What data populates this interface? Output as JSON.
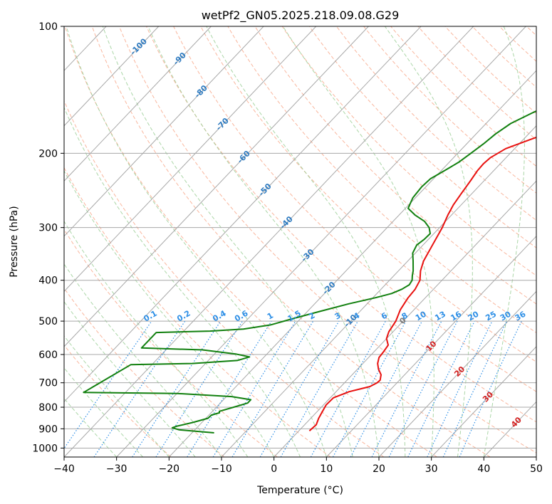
{
  "chart_data": {
    "type": "line",
    "subtype": "skew-t log-p diagram",
    "title": "wetPf2_GN05.2025.218.09.08.G29",
    "xlabel": "Temperature (°C)",
    "ylabel": "Pressure (hPa)",
    "xlim": [
      -40,
      50
    ],
    "ylim": [
      1050,
      100
    ],
    "yscale": "log",
    "x_ticks": [
      -40,
      -30,
      -20,
      -10,
      0,
      10,
      20,
      30,
      40,
      50
    ],
    "x_tick_labels": [
      "−40",
      "−30",
      "−20",
      "−10",
      "0",
      "10",
      "20",
      "30",
      "40",
      "50"
    ],
    "y_ticks": [
      100,
      200,
      300,
      400,
      500,
      600,
      700,
      800,
      900,
      1000
    ],
    "y_tick_labels": [
      "100",
      "200",
      "300",
      "400",
      "500",
      "600",
      "700",
      "800",
      "900",
      "1000"
    ],
    "grid": true,
    "skew_isotherm_labels": [
      "-100",
      "-90",
      "-80",
      "-70",
      "-60",
      "-50",
      "-40",
      "-30",
      "-20",
      "-10",
      "0",
      "10",
      "20",
      "30",
      "40"
    ],
    "mixing_ratio_labels": [
      "0.1",
      "0.2",
      "0.4",
      "0.6",
      "1",
      "1.5",
      "2",
      "3",
      "4",
      "6",
      "8",
      "10",
      "13",
      "16",
      "20",
      "25",
      "30",
      "36"
    ],
    "colors": {
      "temperature": "#e8110f",
      "dewpoint": "#12800f",
      "isotherm": "#a8a8a8",
      "dry_adiabat": "#f7a485",
      "moist_adiabat": "#9ccf98",
      "mixing_ratio": "#2e8fe6",
      "isotherm_label_cold": "#2f7bc0",
      "isotherm_label_warm": "#d32222",
      "isotherm_label_zero": "#7a7a7a"
    },
    "series": [
      {
        "role": "temperature",
        "points": [
          {
            "p": 910,
            "t": 2
          },
          {
            "p": 880,
            "t": 2.2
          },
          {
            "p": 850,
            "t": 1.5
          },
          {
            "p": 820,
            "t": 1
          },
          {
            "p": 790,
            "t": 0.5
          },
          {
            "p": 760,
            "t": 0.6
          },
          {
            "p": 735,
            "t": 2.5
          },
          {
            "p": 715,
            "t": 5.5
          },
          {
            "p": 700,
            "t": 6.2
          },
          {
            "p": 690,
            "t": 6.3
          },
          {
            "p": 670,
            "t": 5.5
          },
          {
            "p": 650,
            "t": 4
          },
          {
            "p": 630,
            "t": 2.8
          },
          {
            "p": 610,
            "t": 2
          },
          {
            "p": 590,
            "t": 1.8
          },
          {
            "p": 570,
            "t": 1.5
          },
          {
            "p": 550,
            "t": 0
          },
          {
            "p": 530,
            "t": -0.8
          },
          {
            "p": 500,
            "t": -1.4
          },
          {
            "p": 470,
            "t": -2.6
          },
          {
            "p": 440,
            "t": -3.3
          },
          {
            "p": 420,
            "t": -3.5
          },
          {
            "p": 400,
            "t": -4.2
          },
          {
            "p": 380,
            "t": -5.8
          },
          {
            "p": 360,
            "t": -7
          },
          {
            "p": 330,
            "t": -8.2
          },
          {
            "p": 300,
            "t": -9.5
          },
          {
            "p": 280,
            "t": -10.7
          },
          {
            "p": 265,
            "t": -11.5
          },
          {
            "p": 250,
            "t": -12
          },
          {
            "p": 232,
            "t": -12.6
          },
          {
            "p": 220,
            "t": -13.1
          },
          {
            "p": 212,
            "t": -13.2
          },
          {
            "p": 205,
            "t": -13
          },
          {
            "p": 195,
            "t": -11.7
          },
          {
            "p": 185,
            "t": -8.5
          },
          {
            "p": 175,
            "t": -5
          },
          {
            "p": 165,
            "t": -2.5
          },
          {
            "p": 157,
            "t": -1.7
          },
          {
            "p": 150,
            "t": -0.7
          },
          {
            "p": 143,
            "t": 0.5
          },
          {
            "p": 135,
            "t": 4
          },
          {
            "p": 125,
            "t": 9
          },
          {
            "p": 115,
            "t": 12.7
          },
          {
            "p": 100,
            "t": 18.3
          }
        ]
      },
      {
        "role": "dewpoint",
        "points": [
          {
            "p": 920,
            "t": -15.8
          },
          {
            "p": 905,
            "t": -23
          },
          {
            "p": 895,
            "t": -24.7
          },
          {
            "p": 888,
            "t": -24.2
          },
          {
            "p": 870,
            "t": -21.8
          },
          {
            "p": 850,
            "t": -19.6
          },
          {
            "p": 835,
            "t": -19.5
          },
          {
            "p": 825,
            "t": -18.4
          },
          {
            "p": 818,
            "t": -18.7
          },
          {
            "p": 800,
            "t": -16.7
          },
          {
            "p": 782,
            "t": -14.8
          },
          {
            "p": 768,
            "t": -14.8
          },
          {
            "p": 755,
            "t": -19
          },
          {
            "p": 742,
            "t": -30
          },
          {
            "p": 738,
            "t": -48
          },
          {
            "p": 634,
            "t": -44
          },
          {
            "p": 630,
            "t": -32.5
          },
          {
            "p": 620,
            "t": -24.5
          },
          {
            "p": 608,
            "t": -22.8
          },
          {
            "p": 598,
            "t": -26
          },
          {
            "p": 585,
            "t": -33
          },
          {
            "p": 579,
            "t": -45
          },
          {
            "p": 532,
            "t": -45
          },
          {
            "p": 528,
            "t": -35
          },
          {
            "p": 522,
            "t": -29
          },
          {
            "p": 510,
            "t": -24.5
          },
          {
            "p": 495,
            "t": -21.8
          },
          {
            "p": 475,
            "t": -17.8
          },
          {
            "p": 455,
            "t": -13.5
          },
          {
            "p": 440,
            "t": -9.5
          },
          {
            "p": 430,
            "t": -7.2
          },
          {
            "p": 420,
            "t": -6
          },
          {
            "p": 410,
            "t": -5.4
          },
          {
            "p": 400,
            "t": -5.7
          },
          {
            "p": 390,
            "t": -6.5
          },
          {
            "p": 380,
            "t": -7.2
          },
          {
            "p": 360,
            "t": -9
          },
          {
            "p": 345,
            "t": -10.5
          },
          {
            "p": 330,
            "t": -11.2
          },
          {
            "p": 320,
            "t": -10.8
          },
          {
            "p": 310,
            "t": -10.7
          },
          {
            "p": 300,
            "t": -12
          },
          {
            "p": 290,
            "t": -14
          },
          {
            "p": 280,
            "t": -17
          },
          {
            "p": 270,
            "t": -19.5
          },
          {
            "p": 255,
            "t": -20.5
          },
          {
            "p": 240,
            "t": -20.8
          },
          {
            "p": 230,
            "t": -20.6
          },
          {
            "p": 220,
            "t": -19.4
          },
          {
            "p": 210,
            "t": -18.2
          },
          {
            "p": 200,
            "t": -17.5
          },
          {
            "p": 190,
            "t": -16.8
          },
          {
            "p": 180,
            "t": -16.3
          },
          {
            "p": 170,
            "t": -15.3
          },
          {
            "p": 160,
            "t": -13
          },
          {
            "p": 150,
            "t": -10
          },
          {
            "p": 140,
            "t": -7
          },
          {
            "p": 130,
            "t": -4.5
          },
          {
            "p": 120,
            "t": -2.2
          },
          {
            "p": 110,
            "t": 0.5
          },
          {
            "p": 100,
            "t": 2
          }
        ]
      }
    ]
  }
}
